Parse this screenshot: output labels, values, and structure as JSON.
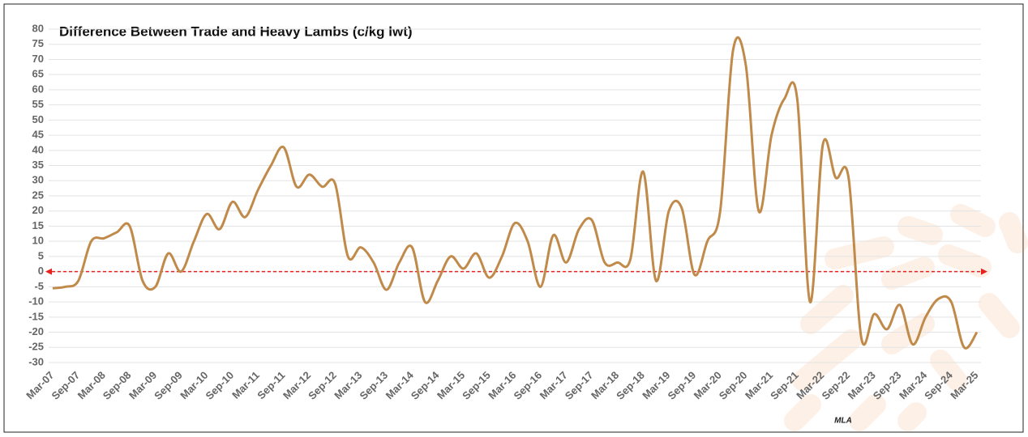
{
  "chart_data": {
    "type": "line",
    "title": "Difference Between Trade and Heavy Lambs (c/kg lwt)",
    "source": "MLA",
    "categories": [
      "Mar-07",
      null,
      "Sep-07",
      null,
      "Mar-08",
      null,
      "Sep-08",
      null,
      "Mar-09",
      null,
      "Sep-09",
      null,
      "Mar-10",
      null,
      "Sep-10",
      null,
      "Mar-11",
      null,
      "Sep-11",
      null,
      "Mar-12",
      null,
      "Sep-12",
      null,
      "Mar-13",
      null,
      "Sep-13",
      null,
      "Mar-14",
      null,
      "Sep-14",
      null,
      "Mar-15",
      null,
      "Sep-15",
      null,
      "Mar-16",
      null,
      "Sep-16",
      null,
      "Mar-17",
      null,
      "Sep-17",
      null,
      "Mar-18",
      null,
      "Sep-18",
      null,
      "Mar-19",
      null,
      "Sep-19",
      null,
      "Mar-20",
      null,
      "Sep-20",
      null,
      "Mar-21",
      null,
      "Sep-21",
      null,
      "Mar-22",
      null,
      "Sep-22",
      null,
      "Mar-23",
      null,
      "Sep-23",
      null,
      "Mar-24",
      null,
      "Sep-24",
      null,
      "Mar-25"
    ],
    "series": [
      {
        "name": "Difference",
        "color": "#c08a4a",
        "values": [
          -5.5,
          -5,
          -3,
          10,
          11,
          13,
          15,
          -3,
          -5,
          6,
          0,
          10,
          19,
          14,
          23,
          18,
          27,
          35,
          41,
          28,
          32,
          28,
          29,
          5,
          8,
          3,
          -6,
          3,
          8,
          -10,
          -3,
          5,
          1,
          6,
          -2,
          5,
          16,
          10,
          -5,
          12,
          3,
          14,
          17,
          3,
          3,
          4,
          33,
          -3,
          20,
          21,
          -1,
          10,
          20,
          73,
          68,
          20,
          45,
          57,
          57,
          -10,
          42,
          31,
          31,
          -22,
          -14,
          -19,
          -11,
          -24,
          -15,
          -9,
          -10,
          -25,
          -20
        ]
      }
    ],
    "ylim": [
      -30,
      80
    ],
    "yticks": [
      -30,
      -25,
      -20,
      -15,
      -10,
      -5,
      0,
      5,
      10,
      15,
      20,
      25,
      30,
      35,
      40,
      45,
      50,
      55,
      60,
      65,
      70,
      75,
      80
    ],
    "grid": true,
    "reference_line": {
      "value": 0,
      "color": "#e8201e"
    }
  }
}
